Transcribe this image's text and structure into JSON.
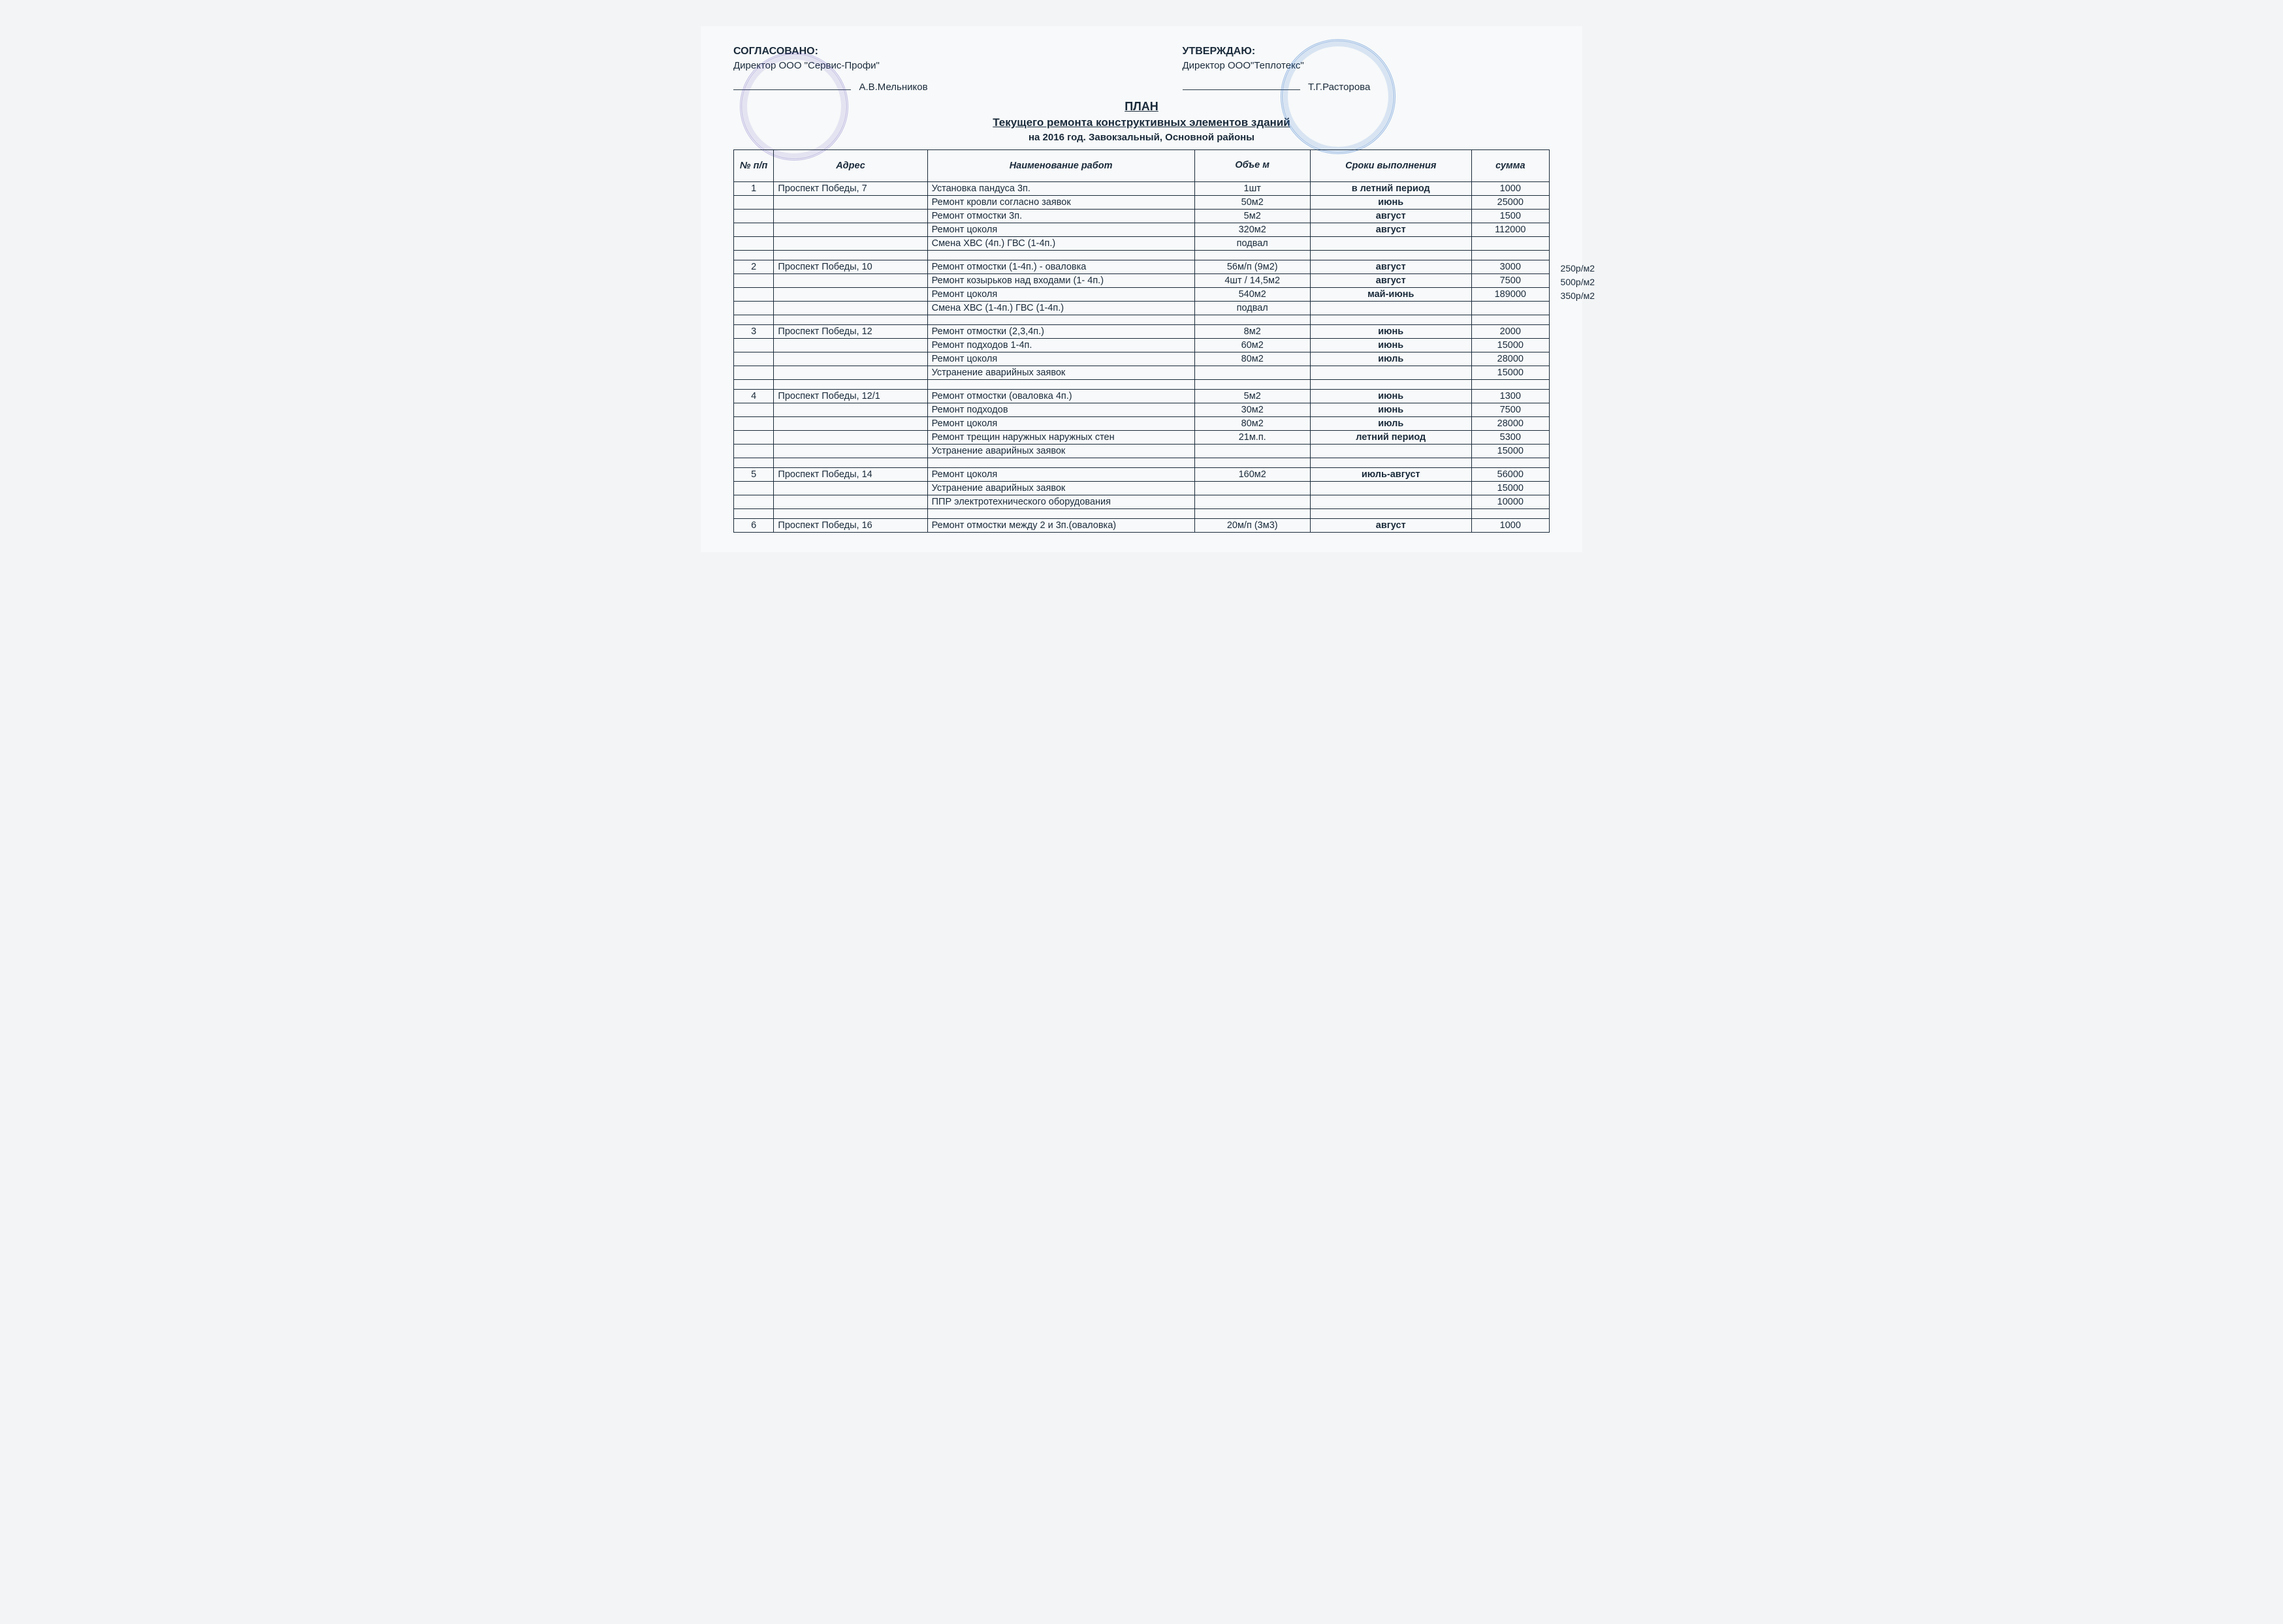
{
  "left": {
    "title": "СОГЛАСОВАНО:",
    "org": "Директор ООО \"Сервис-Профи\"",
    "name": "А.В.Мельников"
  },
  "right": {
    "title": "УТВЕРЖДАЮ:",
    "org": "Директор ООО\"Теплотекс\"",
    "name": "Т.Г.Расторова"
  },
  "titles": {
    "plan": "ПЛАН",
    "sub": "Текущего ремонта конструктивных элементов зданий",
    "year": "на  2016 год. Завокзальный, Основной районы"
  },
  "columns": {
    "num": "№ п/п",
    "addr": "Адрес",
    "work": "Наименование работ",
    "vol": "Объе м",
    "term": "Сроки выполнения",
    "sum": "сумма"
  },
  "rows": [
    {
      "n": "1",
      "addr": "Проспект Победы, 7",
      "work": "Установка пандуса 3п.",
      "vol": "1шт",
      "term": "в летний период",
      "sum": "1000"
    },
    {
      "n": "",
      "addr": "",
      "work": "Ремонт кровли согласно заявок",
      "vol": "50м2",
      "term": "июнь",
      "sum": "25000"
    },
    {
      "n": "",
      "addr": "",
      "work": "Ремонт отмостки 3п.",
      "vol": "5м2",
      "term": "август",
      "sum": "1500"
    },
    {
      "n": "",
      "addr": "",
      "work": "Ремонт цоколя",
      "vol": "320м2",
      "term": "август",
      "sum": "112000"
    },
    {
      "n": "",
      "addr": "",
      "work": "Смена ХВС (4п.) ГВС (1-4п.)",
      "vol": "подвал",
      "term": "",
      "sum": ""
    },
    {
      "spacer": true
    },
    {
      "n": "2",
      "addr": "Проспект Победы, 10",
      "work": "Ремонт отмостки (1-4п.) - оваловка",
      "vol": "56м/п (9м2)",
      "term": "август",
      "sum": "3000",
      "note": "250р/м2"
    },
    {
      "n": "",
      "addr": "",
      "work": "Ремонт козырьков над входами (1- 4п.)",
      "vol": "4шт / 14,5м2",
      "term": "август",
      "sum": "7500",
      "note": "500р/м2"
    },
    {
      "n": "",
      "addr": "",
      "work": "Ремонт цоколя",
      "vol": "540м2",
      "term": "май-июнь",
      "sum": "189000",
      "note": "350р/м2"
    },
    {
      "n": "",
      "addr": "",
      "work": "Смена ХВС (1-4п.) ГВС (1-4п.)",
      "vol": "подвал",
      "term": "",
      "sum": ""
    },
    {
      "spacer": true
    },
    {
      "n": "3",
      "addr": "Проспект Победы, 12",
      "work": "Ремонт отмостки (2,3,4п.)",
      "vol": "8м2",
      "term": "июнь",
      "sum": "2000"
    },
    {
      "n": "",
      "addr": "",
      "work": "Ремонт подходов 1-4п.",
      "vol": "60м2",
      "term": "июнь",
      "sum": "15000"
    },
    {
      "n": "",
      "addr": "",
      "work": "Ремонт цоколя",
      "vol": "80м2",
      "term": "июль",
      "sum": "28000"
    },
    {
      "n": "",
      "addr": "",
      "work": "Устранение аварийных заявок",
      "vol": "",
      "term": "",
      "sum": "15000"
    },
    {
      "spacer": true
    },
    {
      "n": "4",
      "addr": "Проспект Победы, 12/1",
      "work": "Ремонт отмостки (оваловка 4п.)",
      "vol": "5м2",
      "term": "июнь",
      "sum": "1300"
    },
    {
      "n": "",
      "addr": "",
      "work": "Ремонт подходов",
      "vol": "30м2",
      "term": "июнь",
      "sum": "7500"
    },
    {
      "n": "",
      "addr": "",
      "work": "Ремонт цоколя",
      "vol": "80м2",
      "term": "июль",
      "sum": "28000"
    },
    {
      "n": "",
      "addr": "",
      "work": "Ремонт трещин наружных наружных стен",
      "vol": "21м.п.",
      "term": "летний период",
      "sum": "5300"
    },
    {
      "n": "",
      "addr": "",
      "work": "Устранение аварийных заявок",
      "vol": "",
      "term": "",
      "sum": "15000"
    },
    {
      "spacer": true
    },
    {
      "n": "5",
      "addr": "Проспект Победы, 14",
      "work": "Ремонт цоколя",
      "vol": "160м2",
      "term": "июль-август",
      "sum": "56000"
    },
    {
      "n": "",
      "addr": "",
      "work": "Устранение аварийных заявок",
      "vol": "",
      "term": "",
      "sum": "15000"
    },
    {
      "n": "",
      "addr": "",
      "work": "ППР электротехнического оборудования",
      "vol": "",
      "term": "",
      "sum": "10000"
    },
    {
      "spacer": true
    },
    {
      "n": "6",
      "addr": "Проспект Победы, 16",
      "work": "Ремонт отмостки между 2 и 3п.(оваловка)",
      "vol": "20м/п (3м3)",
      "term": "август",
      "sum": "1000"
    }
  ]
}
